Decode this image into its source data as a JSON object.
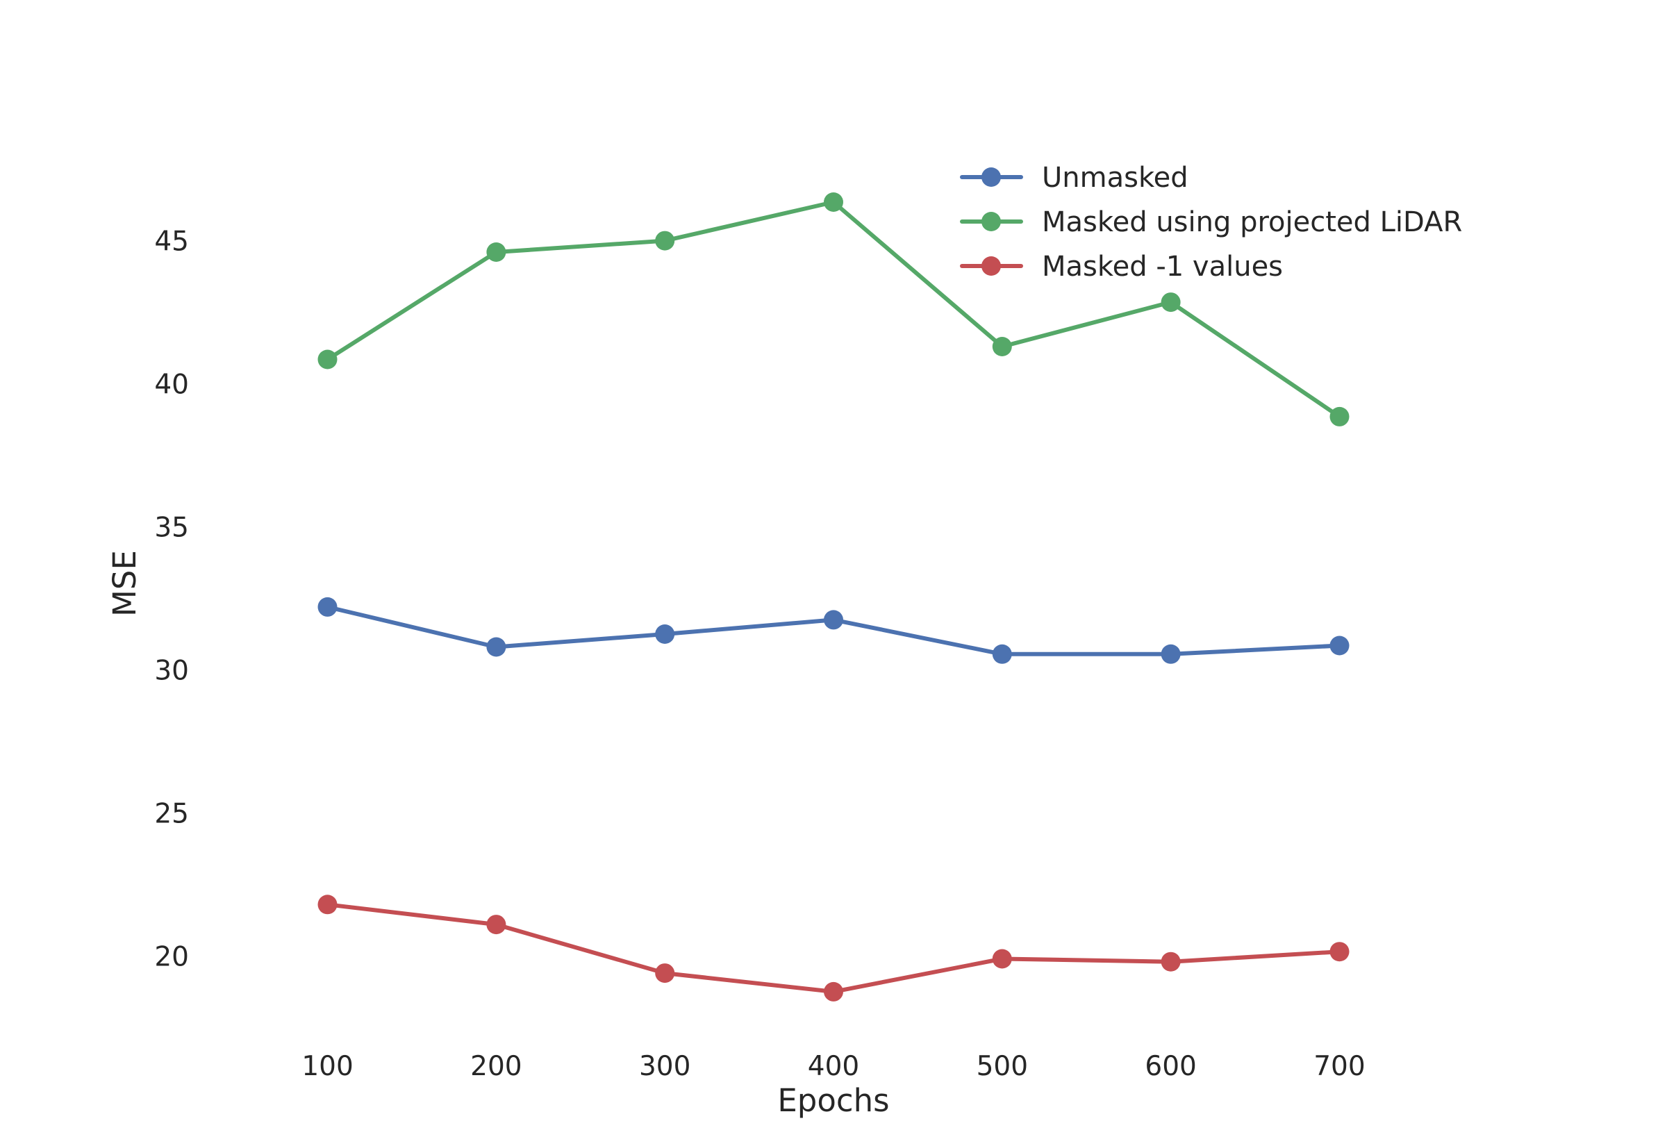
{
  "chart_data": {
    "type": "line",
    "title": "",
    "xlabel": "Epochs",
    "ylabel": "MSE",
    "x": [
      100,
      200,
      300,
      400,
      500,
      600,
      700
    ],
    "xticks": [
      100,
      200,
      300,
      400,
      500,
      600,
      700
    ],
    "yticks": [
      20,
      25,
      30,
      35,
      40,
      45
    ],
    "xlim": [
      17,
      783
    ],
    "ylim": [
      17.0,
      50.5
    ],
    "grid": false,
    "legend": "top-right",
    "series": [
      {
        "name": "Unmasked",
        "color": "#4c72b0",
        "values": [
          32.2,
          30.8,
          31.25,
          31.75,
          30.55,
          30.55,
          30.85
        ]
      },
      {
        "name": "Masked using projected LiDAR",
        "color": "#55a868",
        "values": [
          40.85,
          44.6,
          45.0,
          46.35,
          41.3,
          42.85,
          38.85
        ]
      },
      {
        "name": "Masked -1 values",
        "color": "#c44e52",
        "values": [
          21.8,
          21.1,
          19.4,
          18.75,
          19.9,
          19.8,
          20.15
        ]
      }
    ]
  }
}
